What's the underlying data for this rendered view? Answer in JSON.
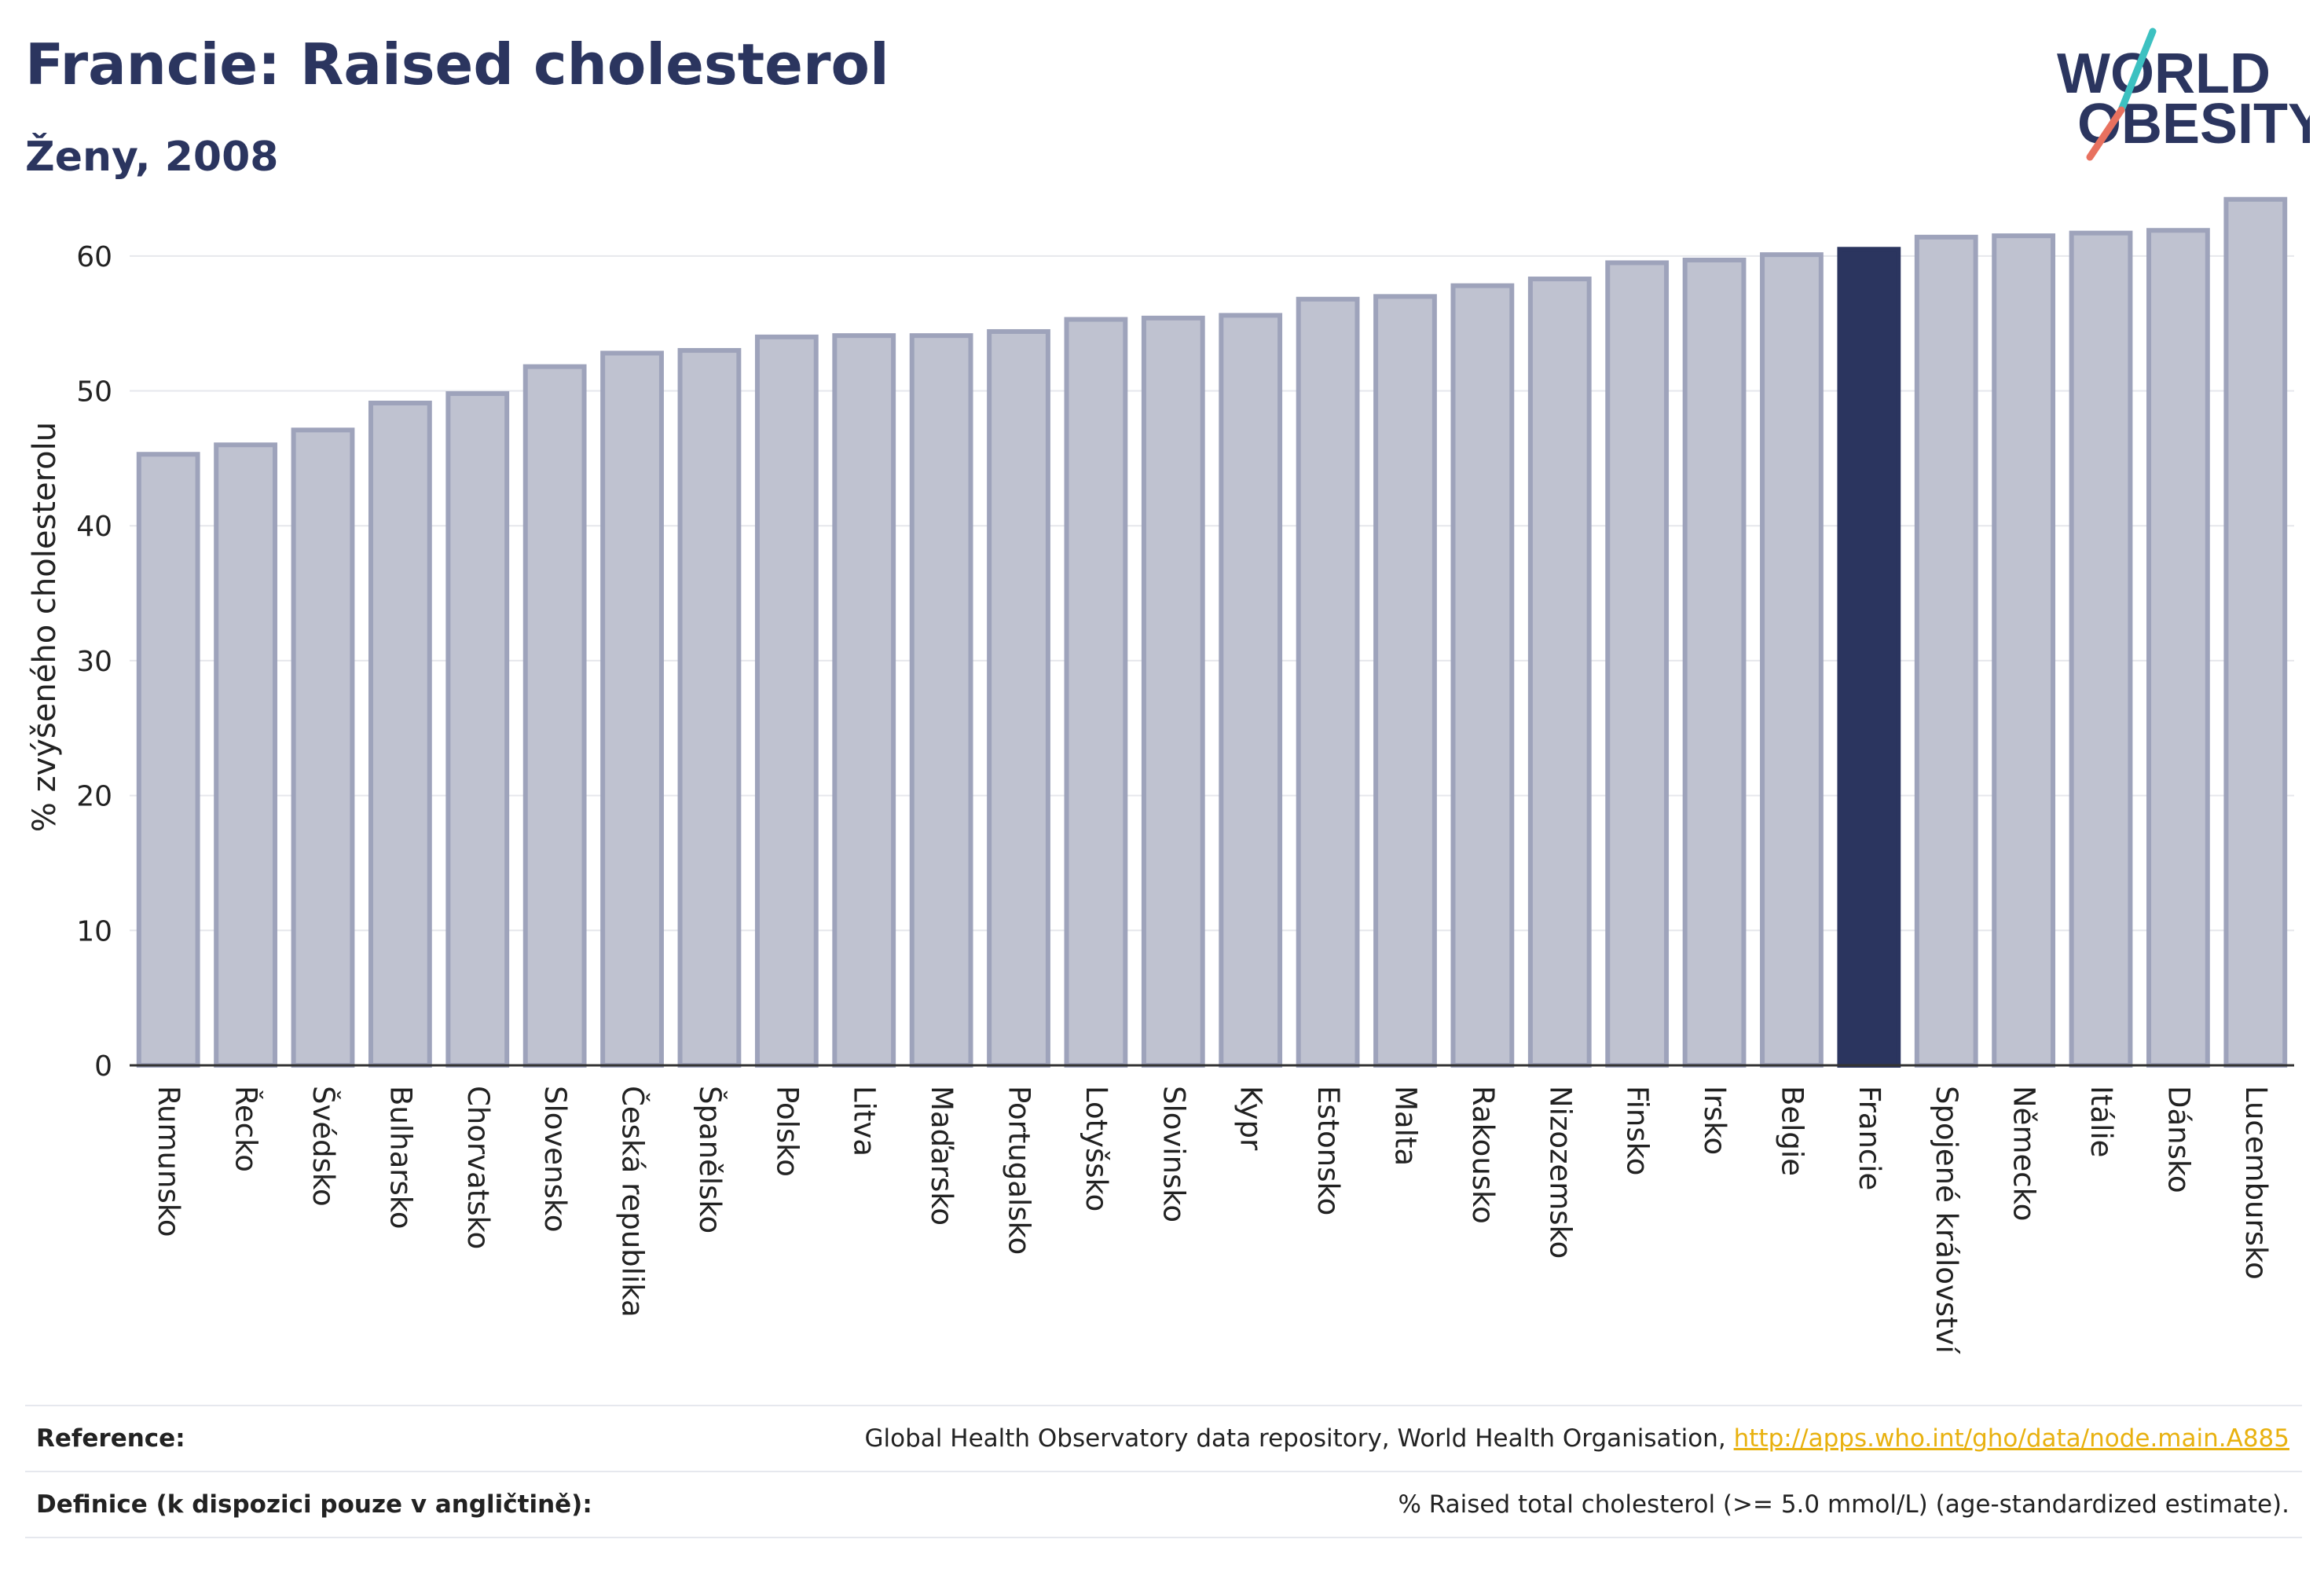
{
  "header": {
    "title": "Francie: Raised cholesterol",
    "subtitle": "Ženy, 2008"
  },
  "logo": {
    "line1": "WORLD",
    "line2": "OBESITY"
  },
  "chart_data": {
    "type": "bar",
    "ylabel": "% zvýšeného cholesterolu",
    "xlabel": "",
    "ylim": [
      0,
      65
    ],
    "yticks": [
      0,
      10,
      20,
      30,
      40,
      50,
      60
    ],
    "grid": true,
    "categories": [
      "Rumunsko",
      "Řecko",
      "Švédsko",
      "Bulharsko",
      "Chorvatsko",
      "Slovensko",
      "Česká republika",
      "Španělsko",
      "Polsko",
      "Litva",
      "Maďarsko",
      "Portugalsko",
      "Lotyšsko",
      "Slovinsko",
      "Kypr",
      "Estonsko",
      "Malta",
      "Rakousko",
      "Nizozemsko",
      "Finsko",
      "Irsko",
      "Belgie",
      "Francie",
      "Spojené království",
      "Německo",
      "Itálie",
      "Dánsko",
      "Lucembursko"
    ],
    "values": [
      45.3,
      46.0,
      47.1,
      49.1,
      49.8,
      51.8,
      52.8,
      53.0,
      54.0,
      54.1,
      54.1,
      54.4,
      55.3,
      55.4,
      55.6,
      56.8,
      57.0,
      57.8,
      58.3,
      59.5,
      59.7,
      60.1,
      60.5,
      61.4,
      61.5,
      61.7,
      61.9,
      64.2
    ],
    "highlight": "Francie",
    "colors": {
      "bar": "#bfc2d0",
      "bar_border": "#9ea3bb",
      "highlight": "#2b355f",
      "grid": "#e6e7ec",
      "axis": "#333333"
    }
  },
  "reference": {
    "ref_label": "Reference:",
    "ref_text": "Global Health Observatory data repository, World Health Organisation, ",
    "ref_link": "http://apps.who.int/gho/data/node.main.A885",
    "def_label": "Definice (k dispozici pouze v angličtině):",
    "def_text": "% Raised total cholesterol (>= 5.0 mmol/L) (age-standardized estimate)."
  }
}
